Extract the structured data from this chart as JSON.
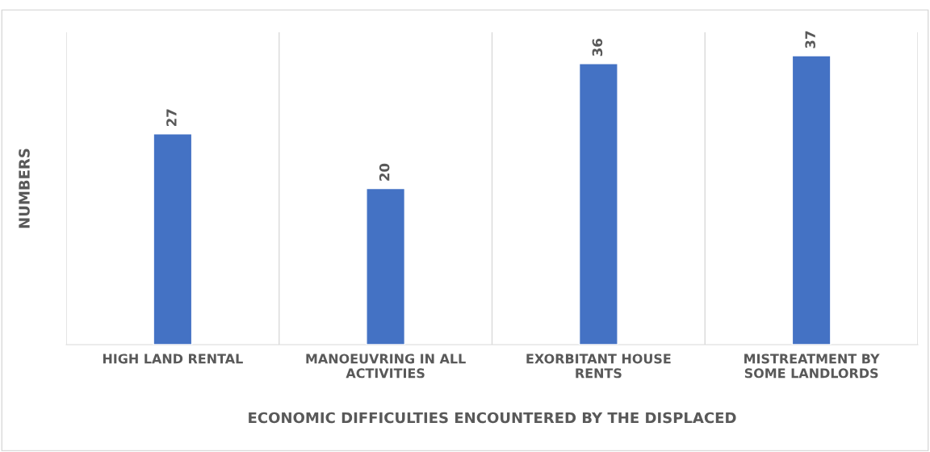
{
  "chart_data": {
    "type": "bar",
    "xlabel": "ECONOMIC DIFFICULTIES ENCOUNTERED BY THE DISPLACED",
    "ylabel": "NUMBERS",
    "categories": [
      "HIGH LAND RENTAL",
      "MANOEUVRING IN ALL ACTIVITIES",
      "EXORBITANT HOUSE RENTS",
      "MISTREATMENT BY SOME LANDLORDS"
    ],
    "values": [
      27,
      20,
      36,
      37
    ],
    "color": "#4472c4",
    "data_labels": true,
    "ylim": [
      0,
      40
    ],
    "tick_labels": "x",
    "grid": "x",
    "legend": false
  }
}
